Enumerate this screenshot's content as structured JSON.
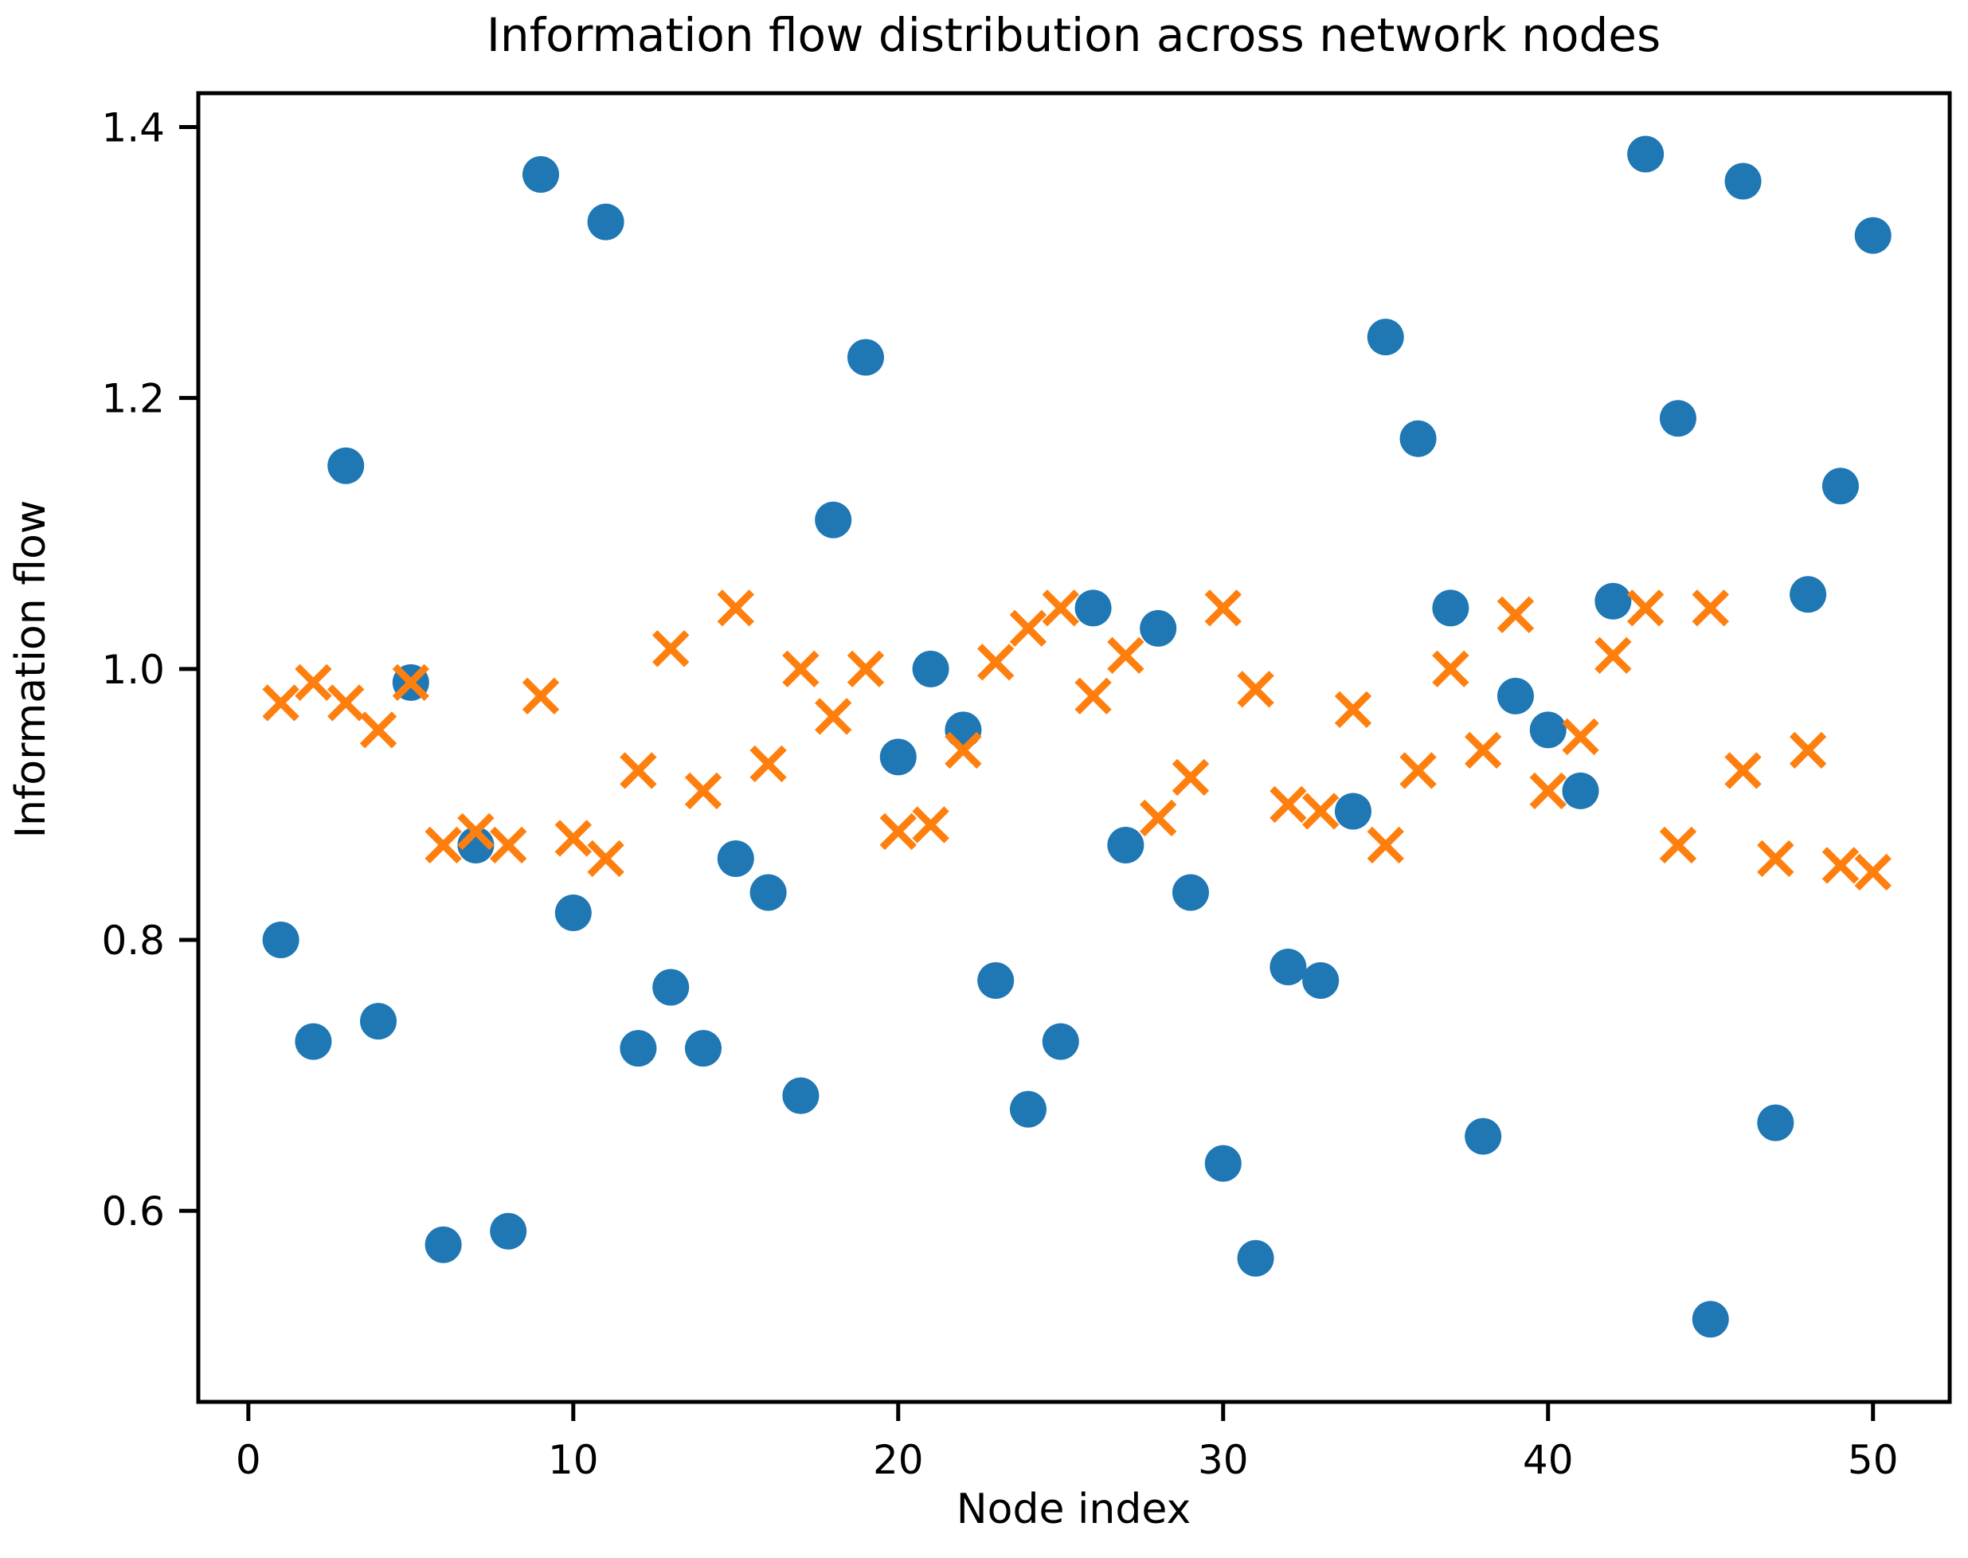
{
  "page": {
    "background": "#ffffff"
  },
  "chart_data": {
    "type": "scatter",
    "title": "Information flow distribution across network nodes",
    "xlabel": "Node index",
    "ylabel": "Information flow",
    "x_ticks": [
      0,
      10,
      20,
      30,
      40,
      50
    ],
    "y_ticks": [
      1.4,
      1.2,
      1.0,
      0.8,
      0.6
    ],
    "y_tick_labels": [
      "1.4",
      "1.2",
      "1.0",
      "0.8",
      "0.6"
    ],
    "xlim": [
      -1.54,
      52.36
    ],
    "ylim": [
      0.459,
      1.425
    ],
    "grid": false,
    "legend_position": "none",
    "axis_color": "#000000",
    "background_color": "#ffffff",
    "series": [
      {
        "name": "node-information-flow-circles",
        "marker": "circle",
        "color": "#1f77b4",
        "x": [
          1,
          2,
          3,
          4,
          5,
          6,
          7,
          8,
          9,
          10,
          11,
          12,
          13,
          14,
          15,
          16,
          17,
          18,
          19,
          20,
          21,
          22,
          23,
          24,
          25,
          26,
          27,
          28,
          29,
          30,
          31,
          32,
          33,
          34,
          35,
          36,
          37,
          38,
          39,
          40,
          41,
          42,
          43,
          44,
          45,
          46,
          47,
          48,
          49,
          50
        ],
        "y": [
          0.8,
          0.725,
          1.15,
          0.74,
          0.99,
          0.575,
          0.87,
          0.585,
          1.365,
          0.82,
          1.33,
          0.72,
          0.765,
          0.72,
          0.86,
          0.835,
          0.685,
          1.11,
          1.23,
          0.935,
          1.0,
          0.955,
          0.77,
          0.675,
          0.725,
          1.045,
          0.87,
          1.03,
          0.835,
          0.635,
          0.565,
          0.78,
          0.77,
          0.895,
          1.245,
          1.17,
          1.045,
          0.655,
          0.98,
          0.955,
          0.91,
          1.05,
          1.38,
          1.185,
          0.52,
          1.36,
          0.665,
          1.055,
          1.135,
          1.32
        ]
      },
      {
        "name": "node-information-flow-crosses",
        "marker": "x",
        "color": "#ff7f0e",
        "x": [
          1,
          2,
          3,
          4,
          5,
          6,
          7,
          8,
          9,
          10,
          11,
          12,
          13,
          14,
          15,
          16,
          17,
          18,
          19,
          20,
          21,
          22,
          23,
          24,
          25,
          26,
          27,
          28,
          29,
          30,
          31,
          32,
          33,
          34,
          35,
          36,
          37,
          38,
          39,
          40,
          41,
          42,
          43,
          44,
          45,
          46,
          47,
          48,
          49,
          50
        ],
        "y": [
          0.975,
          0.99,
          0.975,
          0.955,
          0.99,
          0.87,
          0.88,
          0.87,
          0.98,
          0.875,
          0.86,
          0.925,
          1.015,
          0.91,
          1.045,
          0.93,
          1.0,
          0.965,
          1.0,
          0.88,
          0.885,
          0.94,
          1.005,
          1.03,
          1.045,
          0.98,
          1.01,
          0.89,
          0.92,
          1.045,
          0.985,
          0.9,
          0.895,
          0.97,
          0.87,
          0.925,
          1.0,
          0.94,
          1.04,
          0.91,
          0.95,
          1.01,
          1.045,
          0.87,
          1.045,
          0.925,
          0.86,
          0.94,
          0.855,
          0.85
        ]
      }
    ]
  }
}
